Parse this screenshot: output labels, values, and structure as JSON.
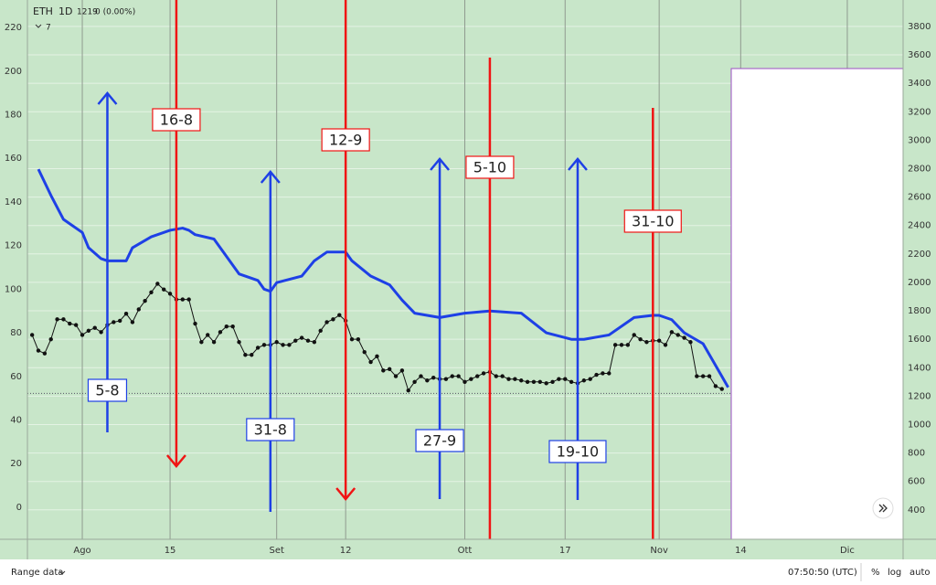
{
  "header": {
    "symbol": "ETH",
    "interval": "1D",
    "change": "0 (0.00%)",
    "indicators": "7"
  },
  "chart_data": {
    "type": "line",
    "last_price": 1219,
    "xlim": [
      -8.75,
      130.9
    ],
    "xticks": [
      {
        "value": 0,
        "label": "Ago"
      },
      {
        "value": 14,
        "label": "15"
      },
      {
        "value": 31,
        "label": "Set"
      },
      {
        "value": 42,
        "label": "12"
      },
      {
        "value": 61,
        "label": "Ott"
      },
      {
        "value": 77,
        "label": "17"
      },
      {
        "value": 92,
        "label": "Nov"
      },
      {
        "value": 105,
        "label": "14"
      },
      {
        "value": 122,
        "label": "Dic"
      }
    ],
    "ylim": [
      -14.7,
      232.6
    ],
    "yticks": [
      0,
      20,
      40,
      60,
      80,
      100,
      120,
      140,
      160,
      180,
      200,
      220
    ],
    "y2lim": [
      193,
      3986
    ],
    "y2ticks": [
      400,
      600,
      800,
      1000,
      1200,
      1400,
      1600,
      1800,
      2000,
      2200,
      2400,
      2600,
      2800,
      3000,
      3200,
      3400,
      3600,
      3800
    ],
    "grid": true,
    "series": [
      {
        "color": "#1e40e6",
        "x": [
          -7,
          -5,
          -3,
          0,
          1,
          3,
          4,
          7,
          8,
          11,
          14,
          16,
          17,
          18,
          21,
          25,
          28,
          29,
          30,
          31,
          35,
          37,
          39,
          42,
          43,
          46,
          49,
          51,
          53,
          57,
          61,
          65,
          70,
          74,
          78,
          80,
          84,
          88,
          91,
          92,
          94,
          96,
          99,
          102,
          103
        ],
        "values": [
          155,
          143,
          132,
          126,
          119,
          114,
          113,
          113,
          119,
          124,
          127,
          128,
          127,
          125,
          123,
          107,
          104,
          100,
          99,
          103,
          106,
          113,
          117,
          117,
          113,
          106,
          102,
          95,
          89,
          87,
          89,
          90,
          89,
          80,
          77,
          77,
          79,
          87,
          88,
          88,
          86,
          80,
          75,
          60,
          55
        ]
      },
      {
        "color": "#111111",
        "axis": "y2",
        "markers": true,
        "x": [
          -8,
          -7,
          -6,
          -5,
          -4,
          -3,
          -2,
          -1,
          0,
          1,
          2,
          3,
          4,
          5,
          6,
          7,
          8,
          9,
          10,
          11,
          12,
          13,
          14,
          15,
          16,
          17,
          18,
          19,
          20,
          21,
          22,
          23,
          24,
          25,
          26,
          27,
          28,
          29,
          30,
          31,
          32,
          33,
          34,
          35,
          36,
          37,
          38,
          39,
          40,
          41,
          42,
          43,
          44,
          45,
          46,
          47,
          48,
          49,
          50,
          51,
          52,
          53,
          54,
          55,
          56,
          57,
          58,
          59,
          60,
          61,
          62,
          63,
          64,
          65,
          66,
          67,
          68,
          69,
          70,
          71,
          72,
          73,
          74,
          75,
          76,
          77,
          78,
          79,
          80,
          81,
          82,
          83,
          84,
          85,
          86,
          87,
          88,
          89,
          90,
          91,
          92,
          93,
          94,
          95,
          96,
          97,
          98,
          99,
          100,
          101,
          102
        ],
        "values": [
          1630,
          1520,
          1500,
          1600,
          1740,
          1740,
          1710,
          1700,
          1630,
          1660,
          1680,
          1650,
          1700,
          1720,
          1730,
          1780,
          1720,
          1810,
          1870,
          1930,
          1990,
          1950,
          1920,
          1880,
          1880,
          1880,
          1710,
          1580,
          1630,
          1580,
          1650,
          1690,
          1690,
          1580,
          1490,
          1490,
          1540,
          1560,
          1560,
          1580,
          1560,
          1560,
          1590,
          1610,
          1590,
          1580,
          1660,
          1720,
          1740,
          1770,
          1730,
          1600,
          1600,
          1510,
          1440,
          1480,
          1380,
          1390,
          1340,
          1380,
          1240,
          1300,
          1340,
          1310,
          1330,
          1320,
          1320,
          1340,
          1340,
          1300,
          1320,
          1340,
          1360,
          1370,
          1340,
          1340,
          1320,
          1320,
          1310,
          1300,
          1300,
          1300,
          1290,
          1300,
          1320,
          1320,
          1300,
          1290,
          1310,
          1320,
          1350,
          1360,
          1360,
          1560,
          1560,
          1560,
          1630,
          1600,
          1580,
          1590,
          1590,
          1560,
          1650,
          1630,
          1610,
          1580,
          1340,
          1340,
          1340,
          1270,
          1250
        ]
      }
    ],
    "annotations": [
      {
        "text": "5-8",
        "x": 4,
        "color": "#1e40e6",
        "direction": "up"
      },
      {
        "text": "16-8",
        "x": 15,
        "color": "#f01414",
        "direction": "down"
      },
      {
        "text": "31-8",
        "x": 30,
        "color": "#1e40e6",
        "direction": "up"
      },
      {
        "text": "12-9",
        "x": 42,
        "color": "#f01414",
        "direction": "down"
      },
      {
        "text": "27-9",
        "x": 57,
        "color": "#1e40e6",
        "direction": "up"
      },
      {
        "text": "5-10",
        "x": 65,
        "color": "#f01414"
      },
      {
        "text": "19-10",
        "x": 79,
        "color": "#1e40e6",
        "direction": "up"
      },
      {
        "text": "31-10",
        "x": 91,
        "color": "#f01414"
      }
    ]
  },
  "footer": {
    "range": "Range data",
    "time": "07:50:50 (UTC)",
    "percent": "%",
    "log": "log",
    "auto": "auto"
  }
}
